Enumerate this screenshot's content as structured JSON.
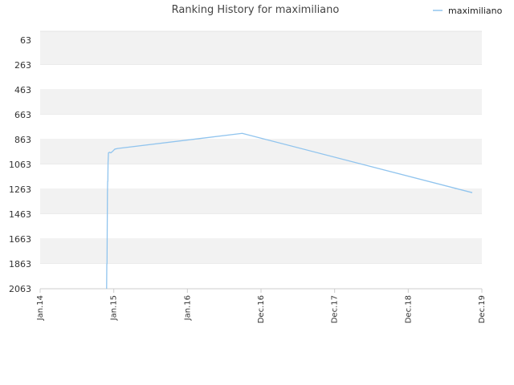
{
  "chart_data": {
    "type": "line",
    "title": "Ranking History for maximiliano",
    "xlabel": "",
    "ylabel": "",
    "x_ticks": [
      "Jan.14",
      "Jan.15",
      "Jan.16",
      "Dec.16",
      "Dec.17",
      "Dec.18",
      "Dec.19"
    ],
    "y_ticks": [
      "63",
      "263",
      "463",
      "663",
      "863",
      "1063",
      "1263",
      "1463",
      "1663",
      "1863",
      "2063"
    ],
    "y_inverted": true,
    "ylim": [
      2063,
      63
    ],
    "xlim": [
      "2014-01-01",
      "2019-12-01"
    ],
    "grid": "alternating horizontal bands",
    "legend_position": "top-right",
    "series": [
      {
        "name": "maximiliano",
        "color": "#90c4ee",
        "points": [
          {
            "x": "2014-11-22",
            "y": 2063
          },
          {
            "x": "2014-11-23",
            "y": 1863
          },
          {
            "x": "2014-11-24",
            "y": 1863
          },
          {
            "x": "2014-11-26",
            "y": 1300
          },
          {
            "x": "2014-11-27",
            "y": 1200
          },
          {
            "x": "2014-11-28",
            "y": 1200
          },
          {
            "x": "2014-11-29",
            "y": 1050
          },
          {
            "x": "2014-12-01",
            "y": 970
          },
          {
            "x": "2014-12-06",
            "y": 965
          },
          {
            "x": "2014-12-12",
            "y": 970
          },
          {
            "x": "2014-12-20",
            "y": 960
          },
          {
            "x": "2015-01-01",
            "y": 940
          },
          {
            "x": "2015-01-15",
            "y": 935
          },
          {
            "x": "2016-09-15",
            "y": 813
          },
          {
            "x": "2019-10-15",
            "y": 1290
          }
        ]
      }
    ]
  }
}
